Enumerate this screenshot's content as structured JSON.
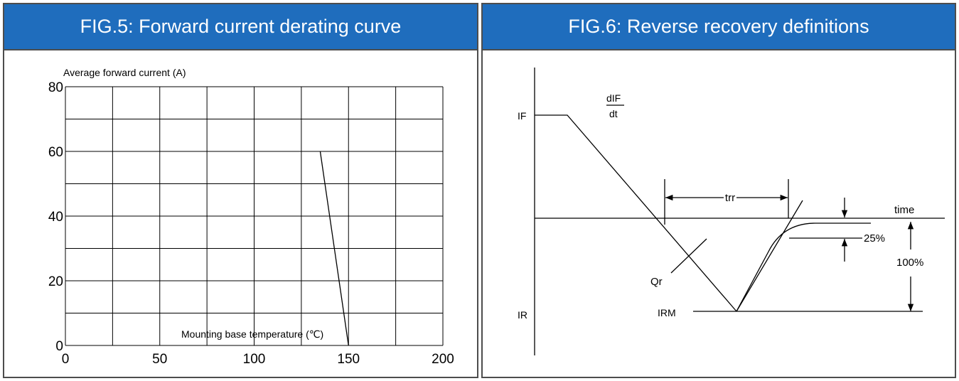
{
  "chart_data": [
    {
      "type": "line",
      "title": "FIG.5: Forward current derating curve",
      "ylabel": "Average forward current (A)",
      "xlabel": "Mounting base temperature (℃)",
      "xlim": [
        0,
        200
      ],
      "ylim": [
        0,
        80
      ],
      "xticks": [
        0,
        50,
        100,
        150,
        200
      ],
      "yticks": [
        0,
        20,
        40,
        60,
        80
      ],
      "grid": true,
      "series": [
        {
          "x": [
            135,
            150
          ],
          "y": [
            60,
            0
          ]
        }
      ]
    },
    {
      "type": "diagram",
      "title": "FIG.6: Reverse recovery definitions",
      "labels": {
        "if_label": "IF",
        "ir_label": "IR",
        "irm_label": "IRM",
        "didt_numerator": "dIF",
        "didt_denominator": "dt",
        "trr_label": "trr",
        "time_label": "time",
        "percent_25": "25%",
        "percent_100": "100%",
        "qr_label": "Qr"
      }
    }
  ],
  "colors": {
    "header_bg": "#1f6dbd",
    "header_text": "#ffffff",
    "border": "#4d4d4d"
  }
}
